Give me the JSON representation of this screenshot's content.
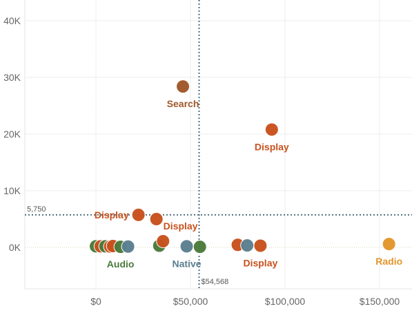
{
  "chart_data": {
    "type": "scatter",
    "title": "",
    "xlabel": "",
    "ylabel": "",
    "xlim": [
      -35000,
      170000
    ],
    "ylim": [
      -7000,
      42000
    ],
    "x_ticks": [
      {
        "value": 0,
        "label": "$0"
      },
      {
        "value": 50000,
        "label": "$50,000"
      },
      {
        "value": 100000,
        "label": "$100,000"
      },
      {
        "value": 150000,
        "label": "$150,000"
      }
    ],
    "y_ticks": [
      {
        "value": 0,
        "label": "0K"
      },
      {
        "value": 10000,
        "label": "10K"
      },
      {
        "value": 20000,
        "label": "20K"
      },
      {
        "value": 30000,
        "label": "30K"
      },
      {
        "value": 40000,
        "label": "40K"
      }
    ],
    "grid": true,
    "reference_lines": [
      {
        "axis": "y",
        "value": 5750,
        "label": "5,750"
      },
      {
        "axis": "x",
        "value": 54568,
        "label": "$54,568"
      }
    ],
    "colors": {
      "Search": "#a0572a",
      "Display": "#c8511d",
      "Audio": "#4a7a3a",
      "Native": "#5b7f8f",
      "Radio": "#e3952a",
      "Display-light": "#d2562b"
    },
    "points": [
      {
        "x": 0,
        "y": 200,
        "category": "Audio"
      },
      {
        "x": 2500,
        "y": 200,
        "category": "Display"
      },
      {
        "x": 5000,
        "y": 200,
        "category": "Audio"
      },
      {
        "x": 7500,
        "y": 150,
        "category": "Display"
      },
      {
        "x": 9000,
        "y": 250,
        "category": "Display"
      },
      {
        "x": 13000,
        "y": 100,
        "category": "Audio"
      },
      {
        "x": 17000,
        "y": 150,
        "category": "Native"
      },
      {
        "x": 22500,
        "y": 5750,
        "category": "Display"
      },
      {
        "x": 32000,
        "y": 5000,
        "category": "Display"
      },
      {
        "x": 33500,
        "y": 300,
        "category": "Audio"
      },
      {
        "x": 35500,
        "y": 1100,
        "category": "Display"
      },
      {
        "x": 46000,
        "y": 28400,
        "category": "Search"
      },
      {
        "x": 48000,
        "y": 200,
        "category": "Native"
      },
      {
        "x": 55000,
        "y": 100,
        "category": "Audio"
      },
      {
        "x": 75000,
        "y": 450,
        "category": "Display"
      },
      {
        "x": 80000,
        "y": 350,
        "category": "Native"
      },
      {
        "x": 87000,
        "y": 300,
        "category": "Display"
      },
      {
        "x": 93000,
        "y": 20800,
        "category": "Display"
      },
      {
        "x": 155000,
        "y": 600,
        "category": "Radio"
      }
    ],
    "labels": [
      {
        "text": "Search",
        "category": "Search",
        "x": 46000,
        "y": 28400,
        "anchor": "below"
      },
      {
        "text": "Display",
        "category": "Display",
        "x": 93000,
        "y": 20800,
        "anchor": "below"
      },
      {
        "text": "Display",
        "category": "Display",
        "x": 22500,
        "y": 5750,
        "anchor": "left"
      },
      {
        "text": "Display",
        "category": "Display",
        "x": 32000,
        "y": 5000,
        "anchor": "below-right"
      },
      {
        "text": "Audio",
        "category": "Audio",
        "x": 13000,
        "y": 100,
        "anchor": "below"
      },
      {
        "text": "Native",
        "category": "Native",
        "x": 48000,
        "y": 200,
        "anchor": "below"
      },
      {
        "text": "Display",
        "category": "Display",
        "x": 87000,
        "y": 300,
        "anchor": "below"
      },
      {
        "text": "Radio",
        "category": "Radio",
        "x": 155000,
        "y": 600,
        "anchor": "below"
      }
    ]
  }
}
